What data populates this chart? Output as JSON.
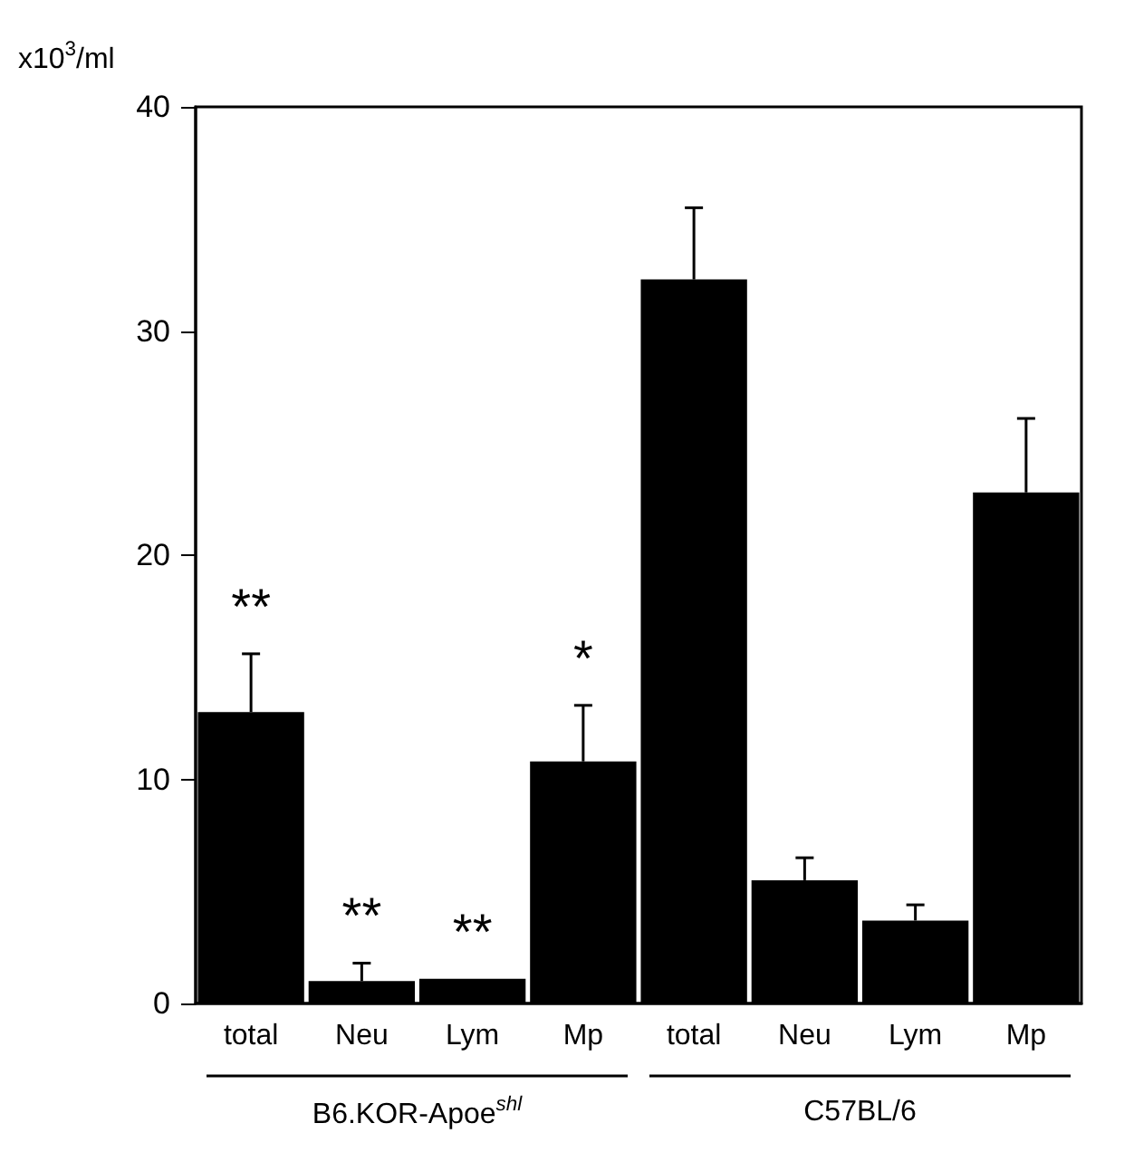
{
  "chart_data": {
    "type": "bar",
    "ylabel": "x10$^{3}$/ml",
    "categories": [
      "total",
      "Neu",
      "Lym",
      "Mp",
      "total",
      "Neu",
      "Lym",
      "Mp"
    ],
    "values": [
      13.0,
      1.0,
      1.1,
      10.8,
      32.3,
      5.5,
      3.7,
      22.8
    ],
    "errors": [
      [
        13.0,
        15.6
      ],
      [
        1.0,
        1.8
      ],
      null,
      [
        10.8,
        13.3
      ],
      [
        32.3,
        35.5
      ],
      [
        5.5,
        6.5
      ],
      [
        3.7,
        4.4
      ],
      [
        22.8,
        26.1
      ]
    ],
    "color": "#000000",
    "ylim": [
      0,
      40
    ],
    "yticks": [
      0,
      10,
      20,
      30,
      40
    ],
    "grid": false,
    "annotations": [
      "**",
      "**",
      "**",
      "*",
      "B6.KOR-Apoe$^{shl}$",
      "C57BL/6"
    ]
  }
}
